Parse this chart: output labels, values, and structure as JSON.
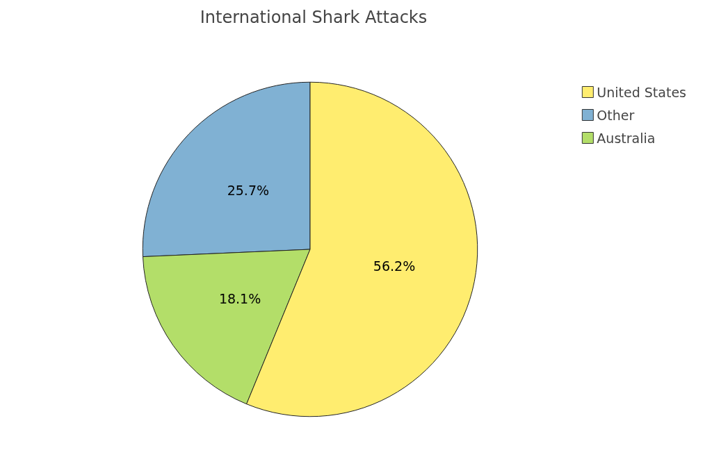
{
  "chart_data": {
    "type": "pie",
    "title": "International Shark Attacks",
    "categories": [
      "Other",
      "Australia",
      "United States"
    ],
    "values": [
      25.7,
      18.1,
      56.2
    ],
    "colors": [
      "#80b1d3",
      "#b3de69",
      "#ffed6f"
    ],
    "value_labels": [
      "25.7%",
      "18.1%",
      "56.2%"
    ],
    "legend": "top right"
  }
}
